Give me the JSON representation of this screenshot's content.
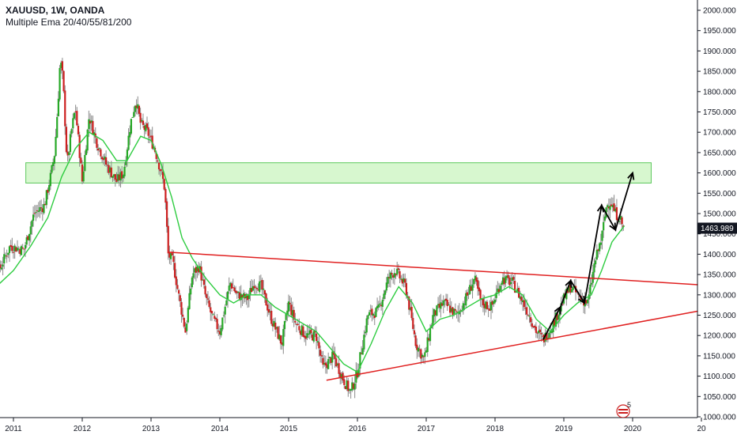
{
  "header": {
    "title": "XAUUSD, 1W, OANDA",
    "indicator": "Multiple Ema 20/40/55/81/200"
  },
  "chart_data": {
    "type": "candlestick",
    "symbol": "XAUUSD",
    "timeframe": "1W",
    "source": "OANDA",
    "ylim": [
      1000,
      2000
    ],
    "y_ticks": [
      "2000.000",
      "1950.000",
      "1900.000",
      "1850.000",
      "1800.000",
      "1750.000",
      "1700.000",
      "1650.000",
      "1600.000",
      "1550.000",
      "1500.000",
      "1450.000",
      "1400.000",
      "1350.000",
      "1300.000",
      "1250.000",
      "1200.000",
      "1150.000",
      "1100.000",
      "1050.000",
      "1000.000"
    ],
    "x_ticks": [
      "2011",
      "2012",
      "2013",
      "2014",
      "2015",
      "2016",
      "2017",
      "2018",
      "2019",
      "2020",
      "20"
    ],
    "last_price": "1463.989",
    "colors": {
      "up": "#26a826",
      "down": "#cc1f1f",
      "ema": "#2ecc40",
      "zone": "#b7f0a8",
      "trendline": "#e02020",
      "arrow": "#000000",
      "last_price_bg": "#131722"
    },
    "price_path": [
      [
        2010.5,
        1360
      ],
      [
        2010.75,
        1345
      ],
      [
        2010.95,
        1420
      ],
      [
        2011.15,
        1410
      ],
      [
        2011.3,
        1500
      ],
      [
        2011.45,
        1520
      ],
      [
        2011.55,
        1600
      ],
      [
        2011.6,
        1650
      ],
      [
        2011.65,
        1780
      ],
      [
        2011.68,
        1880
      ],
      [
        2011.72,
        1830
      ],
      [
        2011.78,
        1620
      ],
      [
        2011.84,
        1700
      ],
      [
        2011.9,
        1760
      ],
      [
        2012.0,
        1580
      ],
      [
        2012.1,
        1740
      ],
      [
        2012.2,
        1680
      ],
      [
        2012.35,
        1620
      ],
      [
        2012.5,
        1580
      ],
      [
        2012.6,
        1600
      ],
      [
        2012.7,
        1720
      ],
      [
        2012.78,
        1780
      ],
      [
        2012.85,
        1720
      ],
      [
        2012.95,
        1700
      ],
      [
        2013.05,
        1660
      ],
      [
        2013.15,
        1600
      ],
      [
        2013.2,
        1560
      ],
      [
        2013.25,
        1400
      ],
      [
        2013.32,
        1380
      ],
      [
        2013.4,
        1300
      ],
      [
        2013.5,
        1210
      ],
      [
        2013.6,
        1350
      ],
      [
        2013.7,
        1370
      ],
      [
        2013.8,
        1290
      ],
      [
        2013.9,
        1240
      ],
      [
        2014.0,
        1210
      ],
      [
        2014.15,
        1330
      ],
      [
        2014.25,
        1300
      ],
      [
        2014.4,
        1290
      ],
      [
        2014.5,
        1330
      ],
      [
        2014.6,
        1320
      ],
      [
        2014.75,
        1240
      ],
      [
        2014.9,
        1180
      ],
      [
        2015.0,
        1280
      ],
      [
        2015.1,
        1230
      ],
      [
        2015.25,
        1200
      ],
      [
        2015.4,
        1200
      ],
      [
        2015.5,
        1120
      ],
      [
        2015.65,
        1150
      ],
      [
        2015.8,
        1090
      ],
      [
        2015.9,
        1060
      ],
      [
        2016.0,
        1110
      ],
      [
        2016.15,
        1250
      ],
      [
        2016.3,
        1260
      ],
      [
        2016.45,
        1340
      ],
      [
        2016.55,
        1360
      ],
      [
        2016.7,
        1320
      ],
      [
        2016.85,
        1180
      ],
      [
        2016.97,
        1140
      ],
      [
        2017.1,
        1250
      ],
      [
        2017.25,
        1280
      ],
      [
        2017.45,
        1250
      ],
      [
        2017.6,
        1300
      ],
      [
        2017.7,
        1340
      ],
      [
        2017.8,
        1280
      ],
      [
        2017.95,
        1270
      ],
      [
        2018.1,
        1340
      ],
      [
        2018.25,
        1330
      ],
      [
        2018.35,
        1300
      ],
      [
        2018.5,
        1250
      ],
      [
        2018.6,
        1210
      ],
      [
        2018.7,
        1190
      ],
      [
        2018.85,
        1230
      ],
      [
        2019.0,
        1290
      ],
      [
        2019.1,
        1320
      ],
      [
        2019.25,
        1290
      ],
      [
        2019.35,
        1280
      ],
      [
        2019.45,
        1380
      ],
      [
        2019.55,
        1440
      ],
      [
        2019.62,
        1520
      ],
      [
        2019.68,
        1530
      ],
      [
        2019.75,
        1500
      ],
      [
        2019.82,
        1490
      ],
      [
        2019.85,
        1470
      ],
      [
        2019.88,
        1464
      ]
    ],
    "ema_path": [
      [
        2010.5,
        1260
      ],
      [
        2010.75,
        1320
      ],
      [
        2011.0,
        1360
      ],
      [
        2011.25,
        1420
      ],
      [
        2011.5,
        1490
      ],
      [
        2011.7,
        1590
      ],
      [
        2011.9,
        1660
      ],
      [
        2012.1,
        1700
      ],
      [
        2012.3,
        1680
      ],
      [
        2012.5,
        1630
      ],
      [
        2012.65,
        1630
      ],
      [
        2012.85,
        1690
      ],
      [
        2013.0,
        1680
      ],
      [
        2013.15,
        1620
      ],
      [
        2013.3,
        1540
      ],
      [
        2013.45,
        1440
      ],
      [
        2013.6,
        1390
      ],
      [
        2013.8,
        1340
      ],
      [
        2014.0,
        1300
      ],
      [
        2014.2,
        1280
      ],
      [
        2014.4,
        1300
      ],
      [
        2014.6,
        1300
      ],
      [
        2014.8,
        1270
      ],
      [
        2015.0,
        1250
      ],
      [
        2015.2,
        1230
      ],
      [
        2015.4,
        1210
      ],
      [
        2015.6,
        1170
      ],
      [
        2015.8,
        1130
      ],
      [
        2016.0,
        1110
      ],
      [
        2016.2,
        1180
      ],
      [
        2016.4,
        1260
      ],
      [
        2016.6,
        1320
      ],
      [
        2016.8,
        1280
      ],
      [
        2017.0,
        1210
      ],
      [
        2017.2,
        1240
      ],
      [
        2017.4,
        1250
      ],
      [
        2017.6,
        1270
      ],
      [
        2017.8,
        1290
      ],
      [
        2018.0,
        1300
      ],
      [
        2018.2,
        1320
      ],
      [
        2018.4,
        1300
      ],
      [
        2018.6,
        1240
      ],
      [
        2018.8,
        1210
      ],
      [
        2019.0,
        1250
      ],
      [
        2019.2,
        1280
      ],
      [
        2019.4,
        1300
      ],
      [
        2019.55,
        1360
      ],
      [
        2019.7,
        1430
      ],
      [
        2019.88,
        1470
      ]
    ],
    "zone": {
      "from_price": 1575,
      "to_price": 1625,
      "from_year": 2011.18,
      "to_year": 2020.27
    },
    "trendlines": [
      {
        "from": [
          2013.25,
          1405
        ],
        "to": [
          2020.95,
          1325
        ]
      },
      {
        "from": [
          2015.55,
          1090
        ],
        "to": [
          2020.95,
          1260
        ]
      }
    ],
    "arrows": [
      [
        [
          2018.7,
          1190
        ],
        [
          2018.95,
          1270
        ],
        [
          2019.1,
          1335
        ],
        [
          2019.3,
          1280
        ],
        [
          2019.55,
          1520
        ],
        [
          2019.75,
          1460
        ],
        [
          2020.0,
          1600
        ]
      ]
    ],
    "badge": "5"
  }
}
